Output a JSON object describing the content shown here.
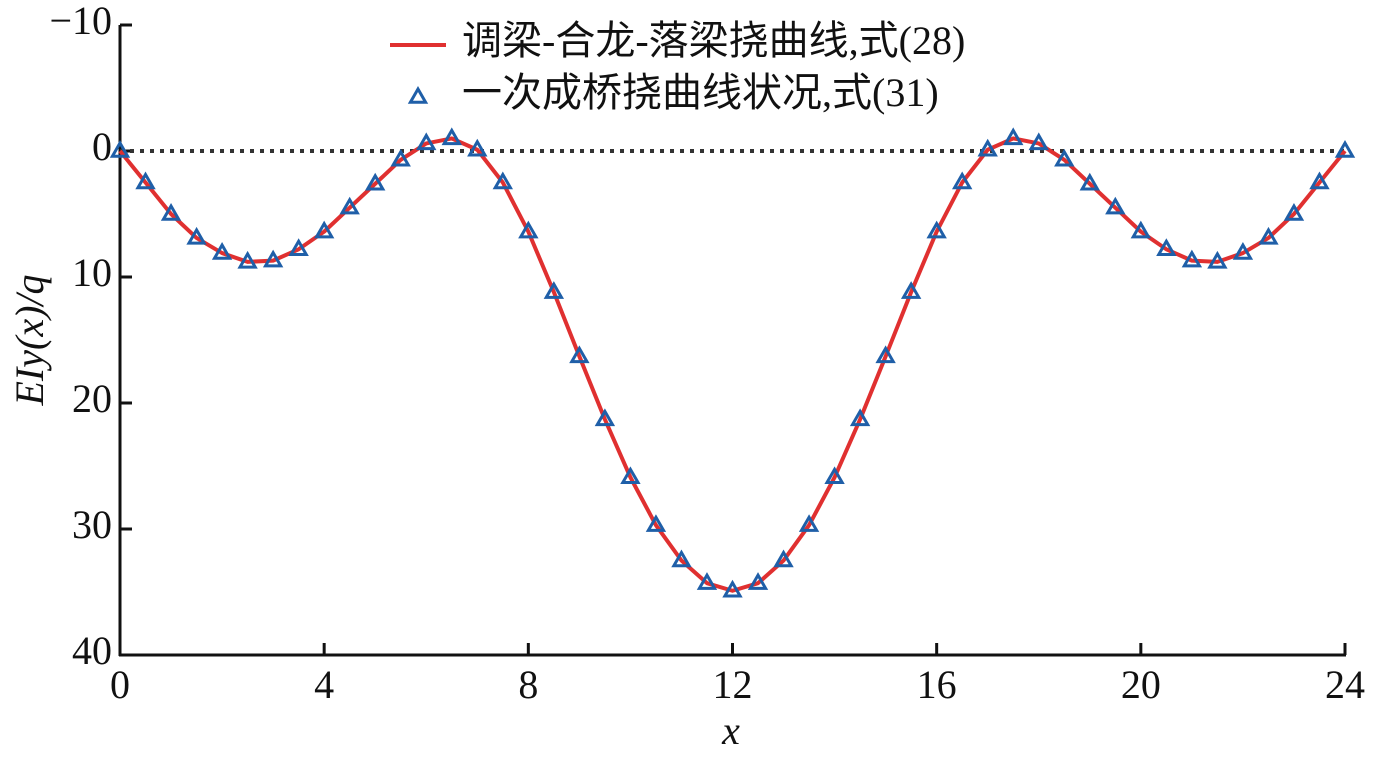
{
  "chart_data": {
    "type": "line",
    "x_label": "x",
    "y_label": "EIy(x)/q",
    "x": [
      0,
      0.5,
      1,
      1.5,
      2,
      2.5,
      3,
      3.5,
      4,
      4.5,
      5,
      5.5,
      6,
      6.5,
      7,
      7.5,
      8,
      8.5,
      9,
      9.5,
      10,
      10.5,
      11,
      11.5,
      12,
      12.5,
      13,
      13.5,
      14,
      14.5,
      15,
      15.5,
      16,
      16.5,
      17,
      17.5,
      18,
      18.5,
      19,
      19.5,
      20,
      20.5,
      21,
      21.5,
      22,
      22.5,
      23,
      23.5,
      24
    ],
    "series": [
      {
        "name": "调梁-合龙-落梁挠曲线,式(28)",
        "color": "#e03030",
        "style": "line",
        "values": [
          0,
          2.5,
          5.0,
          6.9,
          8.1,
          8.8,
          8.7,
          7.8,
          6.4,
          4.5,
          2.6,
          0.7,
          -0.6,
          -1.0,
          -0.1,
          2.5,
          6.4,
          11.2,
          16.3,
          21.3,
          25.9,
          29.7,
          32.5,
          34.3,
          34.9,
          34.3,
          32.5,
          29.7,
          25.9,
          21.3,
          16.3,
          11.2,
          6.4,
          2.5,
          -0.1,
          -1.0,
          -0.6,
          0.7,
          2.6,
          4.5,
          6.4,
          7.8,
          8.7,
          8.8,
          8.1,
          6.9,
          5.0,
          2.5,
          0
        ]
      },
      {
        "name": "一次成桥挠曲线状况,式(31)",
        "color": "#1f5fa8",
        "style": "triangle",
        "values": [
          0,
          2.5,
          5.0,
          6.9,
          8.1,
          8.8,
          8.7,
          7.8,
          6.4,
          4.5,
          2.6,
          0.7,
          -0.6,
          -1.0,
          -0.1,
          2.5,
          6.4,
          11.2,
          16.3,
          21.3,
          25.9,
          29.7,
          32.5,
          34.3,
          34.9,
          34.3,
          32.5,
          29.7,
          25.9,
          21.3,
          16.3,
          11.2,
          6.4,
          2.5,
          -0.1,
          -1.0,
          -0.6,
          0.7,
          2.6,
          4.5,
          6.4,
          7.8,
          8.7,
          8.8,
          8.1,
          6.9,
          5.0,
          2.5,
          0
        ]
      }
    ],
    "reference_line": 0,
    "xlim": [
      0,
      24
    ],
    "xticks": [
      0,
      4,
      8,
      12,
      16,
      20,
      24
    ],
    "ylim": [
      -10,
      40
    ],
    "yticks": [
      {
        "value": -10,
        "label": "−10"
      },
      0,
      10,
      20,
      30,
      40
    ],
    "invert_y": true,
    "grid": false,
    "legend": "upper center"
  }
}
